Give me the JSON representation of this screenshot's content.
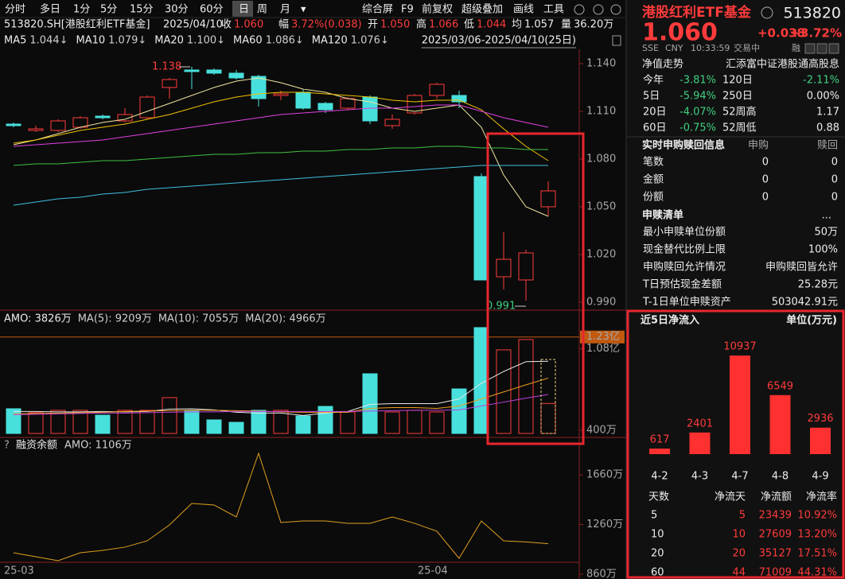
{
  "toolbar": {
    "tabs": [
      "分时",
      "多日",
      "1分",
      "5分",
      "15分",
      "30分",
      "60分",
      "日",
      "周",
      "月"
    ],
    "tools": [
      "综合屏",
      "F9",
      "前复权",
      "超级叠加",
      "画线",
      "工具"
    ]
  },
  "header": {
    "symbol": "513820.SH[港股红利ETF基金]",
    "date": "2025/04/10",
    "fields": [
      {
        "label": "收",
        "value": "1.060"
      },
      {
        "label": "幅",
        "value": "3.72%(0.038)"
      },
      {
        "label": "开",
        "value": "1.050"
      },
      {
        "label": "高",
        "value": "1.066"
      },
      {
        "label": "低",
        "value": "1.044"
      },
      {
        "label": "均",
        "value": "1.057"
      },
      {
        "label": "量",
        "value": "36.20万"
      }
    ]
  },
  "price_chart": {
    "range": "2025/03/06-2025/04/10(25日)",
    "open": [
      1.102,
      1.098,
      1.098,
      1.1,
      1.107,
      1.104,
      1.106,
      1.125,
      1.136,
      1.136,
      1.134,
      1.132,
      1.12,
      1.122,
      1.115,
      1.112,
      1.119,
      1.101,
      1.109,
      1.12,
      1.12,
      1.069,
      1.006,
      1.004,
      1.05
    ],
    "high": [
      1.103,
      1.101,
      1.105,
      1.107,
      1.108,
      1.112,
      1.12,
      1.131,
      1.138,
      1.137,
      1.136,
      1.133,
      1.123,
      1.124,
      1.116,
      1.119,
      1.12,
      1.108,
      1.121,
      1.128,
      1.123,
      1.071,
      1.034,
      1.023,
      1.066
    ],
    "low": [
      1.1,
      1.097,
      1.097,
      1.099,
      1.105,
      1.103,
      1.105,
      1.118,
      1.124,
      1.133,
      1.13,
      1.113,
      1.117,
      1.111,
      1.109,
      1.111,
      1.102,
      1.099,
      1.108,
      1.118,
      1.112,
      1.004,
      0.998,
      0.991,
      1.044
    ],
    "close": [
      1.101,
      1.099,
      1.104,
      1.106,
      1.106,
      1.108,
      1.119,
      1.13,
      1.135,
      1.134,
      1.131,
      1.118,
      1.121,
      1.112,
      1.111,
      1.118,
      1.104,
      1.105,
      1.12,
      1.127,
      1.116,
      1.004,
      1.017,
      1.021,
      1.06
    ],
    "ma": [
      {
        "name": "MA5",
        "label": "1.044↓",
        "color": "#f0e6a0",
        "values": [
          1.089,
          1.092,
          1.096,
          1.1,
          1.103,
          1.105,
          1.11,
          1.115,
          1.12,
          1.125,
          1.129,
          1.131,
          1.128,
          1.124,
          1.122,
          1.118,
          1.116,
          1.112,
          1.11,
          1.112,
          1.114,
          1.1,
          1.07,
          1.05,
          1.044
        ]
      },
      {
        "name": "MA10",
        "label": "1.079↓",
        "color": "#f2c200",
        "values": [
          1.09,
          1.092,
          1.095,
          1.098,
          1.1,
          1.102,
          1.105,
          1.108,
          1.112,
          1.116,
          1.119,
          1.121,
          1.122,
          1.122,
          1.121,
          1.12,
          1.119,
          1.117,
          1.116,
          1.117,
          1.117,
          1.111,
          1.099,
          1.088,
          1.079
        ]
      },
      {
        "name": "MA20",
        "label": "1.100↓",
        "color": "#e040e0",
        "values": [
          1.088,
          1.089,
          1.09,
          1.091,
          1.092,
          1.094,
          1.096,
          1.098,
          1.1,
          1.102,
          1.104,
          1.106,
          1.108,
          1.109,
          1.11,
          1.111,
          1.112,
          1.112,
          1.113,
          1.114,
          1.114,
          1.11,
          1.106,
          1.103,
          1.1
        ]
      },
      {
        "name": "MA60",
        "label": "1.086↓",
        "color": "#40c040",
        "values": [
          1.076,
          1.077,
          1.077,
          1.078,
          1.079,
          1.079,
          1.08,
          1.081,
          1.082,
          1.083,
          1.083,
          1.084,
          1.084,
          1.085,
          1.085,
          1.086,
          1.086,
          1.087,
          1.087,
          1.088,
          1.088,
          1.087,
          1.087,
          1.086,
          1.086
        ]
      },
      {
        "name": "MA120",
        "label": "1.076↓",
        "color": "#40c0e0",
        "values": [
          1.051,
          1.053,
          1.055,
          1.056,
          1.058,
          1.059,
          1.061,
          1.062,
          1.063,
          1.064,
          1.065,
          1.066,
          1.067,
          1.068,
          1.069,
          1.07,
          1.071,
          1.072,
          1.073,
          1.074,
          1.075,
          1.076,
          1.076,
          1.076,
          1.076
        ]
      }
    ],
    "ylim": [
      0.985,
      1.146
    ],
    "yticks": [
      {
        "value": 1.14,
        "label": "1.140"
      },
      {
        "value": 1.11,
        "label": "1.110"
      },
      {
        "value": 1.08,
        "label": "1.080"
      },
      {
        "value": 1.05,
        "label": "1.050"
      },
      {
        "value": 1.02,
        "label": "1.020"
      },
      {
        "value": 0.99,
        "label": "0.990"
      }
    ],
    "max_label": "1.138",
    "min_label": "0.991"
  },
  "volume_chart": {
    "amo_label": "AMO: 3826万",
    "values": [
      3150,
      2650,
      2950,
      2950,
      2330,
      2950,
      2950,
      4570,
      2950,
      1730,
      1420,
      2950,
      2950,
      2230,
      3450,
      2740,
      7610,
      2740,
      2950,
      2740,
      5680,
      13500,
      10660,
      11980,
      3826
    ],
    "ma": [
      {
        "label": "MA(5): 9209万",
        "color": "#e8e8e8",
        "values": [
          2800,
          2800,
          2750,
          2750,
          2800,
          2750,
          2800,
          3100,
          3150,
          3000,
          2700,
          2600,
          2600,
          2300,
          2600,
          2800,
          3700,
          3800,
          3800,
          3800,
          4400,
          6400,
          7900,
          9150,
          9209
        ]
      },
      {
        "label": "MA(10): 7055万",
        "color": "#f0a020",
        "values": [
          2500,
          2550,
          2600,
          2650,
          2700,
          2800,
          2850,
          2900,
          2950,
          2950,
          2900,
          2850,
          2750,
          2700,
          2700,
          2700,
          3200,
          3300,
          3300,
          3200,
          3500,
          4400,
          5300,
          6200,
          7055
        ]
      },
      {
        "label": "MA(20): 4966万",
        "color": "#c040e0",
        "values": [
          2400,
          2450,
          2500,
          2550,
          2600,
          2600,
          2650,
          2700,
          2750,
          2750,
          2800,
          2800,
          2800,
          2800,
          2800,
          2800,
          2850,
          2900,
          2950,
          2950,
          3000,
          3500,
          4000,
          4500,
          4966
        ]
      }
    ],
    "ylim": [
      0,
      14200
    ],
    "yticks": [
      {
        "value": 400,
        "label": "400万"
      },
      {
        "value": 10800,
        "label": "1.08亿"
      },
      {
        "value": 12300,
        "label": "1.23亿"
      }
    ]
  },
  "margin_chart": {
    "title": "融资余额",
    "label": "AMO: 1106万",
    "color": "#e0a020",
    "values": [
      1033,
      1001,
      969,
      1033,
      1052,
      1078,
      1129,
      1257,
      1430,
      1417,
      1321,
      1833,
      1276,
      1289,
      1289,
      1270,
      1270,
      1321,
      1270,
      1206,
      988,
      1289,
      1129,
      1120,
      1106
    ],
    "ylim": [
      828,
      1865
    ],
    "yticks": [
      {
        "value": 1660,
        "label": "1660万"
      },
      {
        "value": 1260,
        "label": "1260万"
      },
      {
        "value": 860,
        "label": "860万"
      }
    ]
  },
  "dates": [
    "25-03",
    "25-04"
  ],
  "quote_panel": {
    "name": "港股红利ETF基金",
    "code": "513820",
    "price": "1.060",
    "change": "+0.038",
    "change_pct": "+3.72%",
    "exchange": "SSE",
    "currency": "CNY",
    "time": "10:33:59",
    "status": "交易中",
    "badge": "融",
    "nav_trend": "净值走势",
    "index_name": "汇添富中证港股通高股息",
    "returns": [
      [
        "今年",
        "-3.81%",
        "120日",
        "-2.11%"
      ],
      [
        "5日",
        "-5.94%",
        "250日",
        "0.00%"
      ],
      [
        "20日",
        "-4.07%",
        "52周高",
        "1.17"
      ],
      [
        "60日",
        "-0.75%",
        "52周低",
        "0.88"
      ]
    ],
    "subscription": {
      "title": "实时申购赎回信息",
      "columns": [
        "申购",
        "赎回"
      ],
      "rows": [
        [
          "笔数",
          "0",
          "0"
        ],
        [
          "金额",
          "0",
          "0"
        ],
        [
          "份额",
          "0",
          "0"
        ]
      ]
    },
    "list": {
      "title": "申赎清单",
      "more": "...",
      "rows": [
        [
          "最小申赎单位份额",
          "50万"
        ],
        [
          "现金替代比例上限",
          "100%"
        ],
        [
          "申购赎回允许情况",
          "申购赎回皆允许"
        ],
        [
          "T日预估现金差额",
          "25.28元"
        ],
        [
          "T-1日单位申赎资产",
          "503042.91元"
        ]
      ]
    }
  },
  "flow_panel": {
    "title": "近5日净流入",
    "unit": "单位(万元)",
    "type": "bar",
    "categories": [
      "4-2",
      "4-3",
      "4-7",
      "4-8",
      "4-9"
    ],
    "values": [
      617,
      2401,
      10937,
      6549,
      2936
    ],
    "color": "#ff3030",
    "ylim": [
      0,
      12000
    ],
    "table": {
      "columns": [
        "天数",
        "净流天",
        "净流额",
        "净流率"
      ],
      "rows": [
        [
          "5",
          "5",
          "23439",
          "10.92%"
        ],
        [
          "10",
          "10",
          "27609",
          "13.20%"
        ],
        [
          "20",
          "20",
          "35127",
          "17.51%"
        ],
        [
          "60",
          "44",
          "71009",
          "44.31%"
        ]
      ]
    }
  }
}
